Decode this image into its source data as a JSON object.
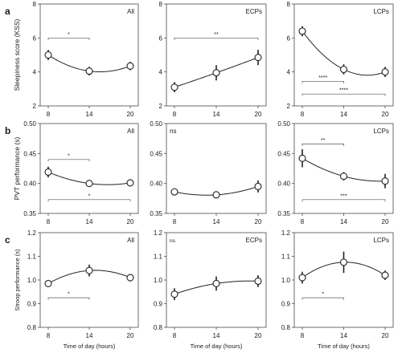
{
  "rows": [
    {
      "letter": "a",
      "ylabel": "Sleepiness score (KSS)",
      "xlabel": ""
    },
    {
      "letter": "b",
      "ylabel": "PVT performance (s)",
      "xlabel": ""
    },
    {
      "letter": "c",
      "ylabel": "Stroop performance (s)",
      "xlabel": "Time of day (hours)"
    }
  ],
  "chart_data": [
    {
      "type": "scatter",
      "row": 0,
      "col": 0,
      "group_label": "All",
      "ns_label": "",
      "x_ticks": [
        8,
        14,
        20
      ],
      "y_ticks": [
        "2",
        "4",
        "6",
        "8"
      ],
      "ylim": [
        2,
        8
      ],
      "x": [
        8,
        14,
        20
      ],
      "y": [
        5.0,
        4.05,
        4.35
      ],
      "err": [
        0.3,
        0.25,
        0.25
      ],
      "fit": "quadratic",
      "sig": [
        {
          "x1": 8,
          "x2": 14,
          "y": 6.0,
          "label": "*"
        }
      ]
    },
    {
      "type": "scatter",
      "row": 0,
      "col": 1,
      "group_label": "ECPs",
      "ns_label": "",
      "x_ticks": [
        8,
        14,
        20
      ],
      "y_ticks": [
        "2",
        "4",
        "6",
        "8"
      ],
      "ylim": [
        2,
        8
      ],
      "x": [
        8,
        14,
        20
      ],
      "y": [
        3.1,
        3.95,
        4.85
      ],
      "err": [
        0.3,
        0.45,
        0.45
      ],
      "fit": "quadratic",
      "sig": [
        {
          "x1": 8,
          "x2": 20,
          "y": 6.0,
          "label": "**"
        }
      ]
    },
    {
      "type": "scatter",
      "row": 0,
      "col": 2,
      "group_label": "LCPs",
      "ns_label": "",
      "x_ticks": [
        8,
        14,
        20
      ],
      "y_ticks": [
        "2",
        "4",
        "6",
        "8"
      ],
      "ylim": [
        2,
        8
      ],
      "x": [
        8,
        14,
        20
      ],
      "y": [
        6.4,
        4.15,
        4.0
      ],
      "err": [
        0.3,
        0.3,
        0.3
      ],
      "fit": "quadratic",
      "sig": [
        {
          "x1": 8,
          "x2": 14,
          "y": 3.45,
          "label": "****"
        },
        {
          "x1": 8,
          "x2": 20,
          "y": 2.7,
          "label": "****"
        }
      ]
    },
    {
      "type": "scatter",
      "row": 1,
      "col": 0,
      "group_label": "All",
      "ns_label": "",
      "x_ticks": [
        8,
        14,
        20
      ],
      "y_ticks": [
        "0.35",
        "0.40",
        "0.45",
        "0.50"
      ],
      "ylim": [
        0.35,
        0.5
      ],
      "x": [
        8,
        14,
        20
      ],
      "y": [
        0.419,
        0.4,
        0.401
      ],
      "err": [
        0.009,
        0.005,
        0.006
      ],
      "fit": "quadratic",
      "sig": [
        {
          "x1": 8,
          "x2": 14,
          "y": 0.44,
          "label": "*"
        },
        {
          "x1": 8,
          "x2": 20,
          "y": 0.373,
          "label": "*"
        }
      ]
    },
    {
      "type": "scatter",
      "row": 1,
      "col": 1,
      "group_label": "",
      "ns_label": "ns",
      "x_ticks": [
        8,
        14,
        20
      ],
      "y_ticks": [
        "0.35",
        "0.40",
        "0.45",
        "0.50"
      ],
      "ylim": [
        0.35,
        0.5
      ],
      "x": [
        8,
        14,
        20
      ],
      "y": [
        0.386,
        0.381,
        0.395
      ],
      "err": [
        0.006,
        0.004,
        0.01
      ],
      "fit": "quadratic",
      "sig": []
    },
    {
      "type": "scatter",
      "row": 1,
      "col": 2,
      "group_label": "LCPs",
      "ns_label": "",
      "x_ticks": [
        8,
        14,
        20
      ],
      "y_ticks": [
        "0.35",
        "0.40",
        "0.45",
        "0.50"
      ],
      "ylim": [
        0.35,
        0.5
      ],
      "x": [
        8,
        14,
        20
      ],
      "y": [
        0.442,
        0.412,
        0.404
      ],
      "err": [
        0.015,
        0.007,
        0.012
      ],
      "fit": "quadratic",
      "sig": [
        {
          "x1": 8,
          "x2": 14,
          "y": 0.466,
          "label": "**"
        },
        {
          "x1": 8,
          "x2": 20,
          "y": 0.373,
          "label": "***"
        }
      ]
    },
    {
      "type": "scatter",
      "row": 2,
      "col": 0,
      "group_label": "All",
      "ns_label": "",
      "x_ticks": [
        8,
        14,
        20
      ],
      "y_ticks": [
        "0.8",
        "0.9",
        "1.0",
        "1.1",
        "1.2"
      ],
      "ylim": [
        0.8,
        1.2
      ],
      "x": [
        8,
        14,
        20
      ],
      "y": [
        0.985,
        1.04,
        1.01
      ],
      "err": [
        0.015,
        0.025,
        0.015
      ],
      "fit": "quadratic",
      "sig": [
        {
          "x1": 8,
          "x2": 14,
          "y": 0.925,
          "label": "*"
        }
      ]
    },
    {
      "type": "scatter",
      "row": 2,
      "col": 1,
      "group_label": "ECPs",
      "ns_label": "ns",
      "x_ticks": [
        8,
        14,
        20
      ],
      "y_ticks": [
        "0.8",
        "0.9",
        "1.0",
        "1.1",
        "1.2"
      ],
      "ylim": [
        0.8,
        1.2
      ],
      "x": [
        8,
        14,
        20
      ],
      "y": [
        0.94,
        0.985,
        0.995
      ],
      "err": [
        0.025,
        0.03,
        0.025
      ],
      "fit": "quadratic",
      "sig": []
    },
    {
      "type": "scatter",
      "row": 2,
      "col": 2,
      "group_label": "LCPs",
      "ns_label": "",
      "x_ticks": [
        8,
        14,
        20
      ],
      "y_ticks": [
        "0.8",
        "0.9",
        "1.0",
        "1.1",
        "1.2"
      ],
      "ylim": [
        0.8,
        1.2
      ],
      "x": [
        8,
        14,
        20
      ],
      "y": [
        1.01,
        1.075,
        1.02
      ],
      "err": [
        0.025,
        0.045,
        0.02
      ],
      "fit": "quadratic",
      "sig": [
        {
          "x1": 8,
          "x2": 14,
          "y": 0.925,
          "label": "*"
        }
      ]
    }
  ]
}
